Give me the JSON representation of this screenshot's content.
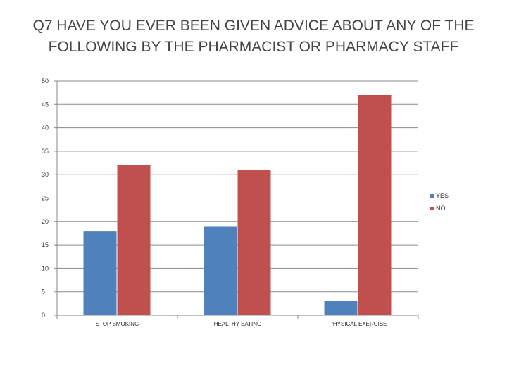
{
  "chart_data": {
    "type": "bar",
    "title_lines": [
      "Q7 HAVE YOU EVER BEEN GIVEN ADVICE ABOUT ANY OF THE",
      "FOLLOWING BY THE PHARMACIST OR PHARMACY STAFF"
    ],
    "categories": [
      "STOP SMOKING",
      "HEALTHY EATING",
      "PHYSICAL EXERCISE"
    ],
    "series": [
      {
        "name": "YES",
        "color": "#4F81BD",
        "values": [
          18,
          19,
          3
        ]
      },
      {
        "name": "NO",
        "color": "#C0504D",
        "values": [
          32,
          31,
          47
        ]
      }
    ],
    "ylim": [
      0,
      50
    ],
    "yticks": [
      0,
      5,
      10,
      15,
      20,
      25,
      30,
      35,
      40,
      45,
      50
    ],
    "grid": true,
    "legend_position": "right"
  }
}
